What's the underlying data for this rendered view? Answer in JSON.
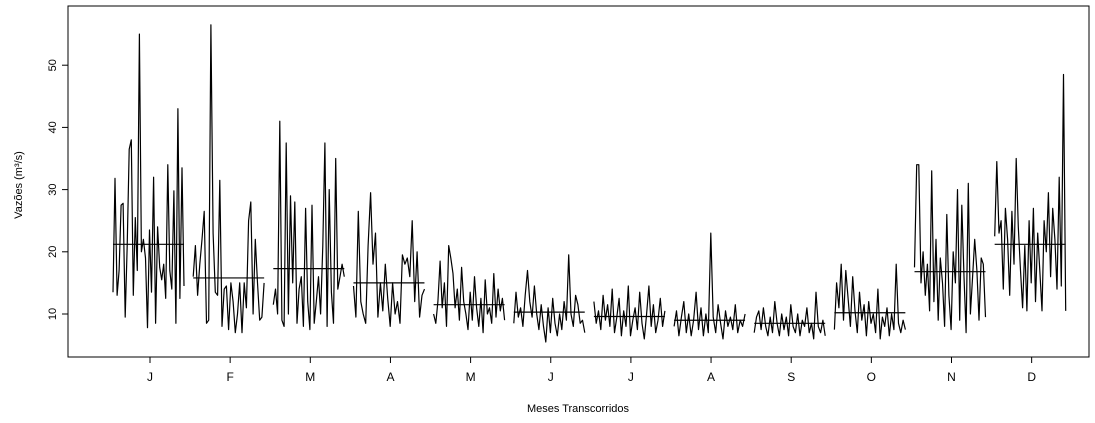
{
  "chart_data": {
    "type": "line",
    "title": "",
    "xlabel": "Meses Transcorridos",
    "ylabel": "Vazões (m³/s)",
    "ylim": [
      3,
      57
    ],
    "yticks": [
      10,
      20,
      30,
      40,
      50
    ],
    "grid": false,
    "legend": "none",
    "months": [
      {
        "label": "J",
        "mean": 21.2,
        "values": [
          13.5,
          31.8,
          13.0,
          17.0,
          27.5,
          27.8,
          9.5,
          21.0,
          36.5,
          38.0,
          13.0,
          25.5,
          17.0,
          55.0,
          20.0,
          22.0,
          19.0,
          7.8,
          23.5,
          13.5,
          32.0,
          8.5,
          24.0,
          17.5,
          15.5,
          18.0,
          12.5,
          34.0,
          17.0,
          14.0,
          29.8,
          8.5,
          43.0,
          12.5,
          33.5,
          14.5
        ]
      },
      {
        "label": "F",
        "mean": 15.8,
        "values": [
          16.0,
          21.0,
          13.0,
          18.0,
          22.0,
          26.5,
          8.5,
          9.0,
          56.5,
          23.0,
          13.5,
          13.0,
          31.5,
          8.0,
          14.0,
          14.5,
          7.5,
          15.0,
          12.0,
          7.0,
          10.0,
          15.0,
          7.0,
          15.0,
          11.0,
          25.0,
          28.0,
          10.0,
          22.0,
          15.0,
          9.0,
          9.5,
          15.0
        ]
      },
      {
        "label": "M",
        "mean": 17.3,
        "values": [
          11.5,
          14.0,
          10.0,
          41.0,
          9.0,
          8.0,
          37.5,
          10.0,
          29.0,
          15.0,
          28.0,
          8.5,
          14.0,
          16.0,
          8.0,
          27.0,
          12.0,
          7.5,
          27.5,
          8.5,
          12.0,
          16.0,
          10.0,
          21.0,
          37.5,
          8.0,
          30.0,
          13.5,
          8.5,
          35.0,
          14.0,
          16.0,
          18.0,
          16.0
        ]
      },
      {
        "label": "A",
        "mean": 15.0,
        "values": [
          14.5,
          9.5,
          26.5,
          12.0,
          10.0,
          8.5,
          21.0,
          29.5,
          18.0,
          23.0,
          9.5,
          15.0,
          10.5,
          18.0,
          12.5,
          8.0,
          15.0,
          10.0,
          12.0,
          8.5,
          19.5,
          18.0,
          19.0,
          16.0,
          25.0,
          12.0,
          20.0,
          9.5,
          13.0,
          14.0
        ]
      },
      {
        "label": "M",
        "mean": 11.5,
        "values": [
          10.0,
          8.5,
          12.0,
          18.5,
          11.0,
          15.0,
          8.0,
          21.0,
          19.0,
          16.5,
          11.0,
          14.0,
          9.0,
          17.5,
          12.0,
          10.0,
          7.5,
          13.5,
          9.0,
          16.0,
          11.0,
          8.0,
          12.5,
          7.0,
          15.5,
          10.0,
          11.0,
          8.5,
          16.5,
          9.5,
          14.0,
          10.5,
          12.5,
          9.0
        ]
      },
      {
        "label": "J",
        "mean": 10.3,
        "values": [
          8.5,
          13.5,
          9.5,
          11.0,
          8.0,
          13.0,
          17.0,
          12.0,
          9.5,
          14.5,
          10.0,
          7.5,
          11.5,
          8.0,
          5.5,
          11.0,
          7.0,
          12.5,
          8.5,
          6.5,
          10.0,
          7.5,
          12.0,
          9.0,
          19.5,
          10.0,
          8.0,
          13.0,
          11.5,
          8.5,
          9.0,
          7.0
        ]
      },
      {
        "label": "J",
        "mean": 9.6,
        "values": [
          12.0,
          8.5,
          10.5,
          7.5,
          13.0,
          9.0,
          11.5,
          8.0,
          14.0,
          7.0,
          9.5,
          12.5,
          6.5,
          10.5,
          8.0,
          14.5,
          6.5,
          9.0,
          11.0,
          7.5,
          13.5,
          8.5,
          6.0,
          10.0,
          14.5,
          8.0,
          11.5,
          7.0,
          9.0,
          12.5,
          8.0,
          10.5
        ]
      },
      {
        "label": "A",
        "mean": 9.0,
        "values": [
          8.0,
          10.5,
          6.5,
          9.5,
          12.0,
          7.0,
          10.0,
          6.5,
          9.0,
          13.5,
          7.5,
          11.0,
          6.5,
          10.0,
          7.0,
          23.0,
          9.5,
          7.0,
          11.5,
          8.5,
          6.0,
          10.5,
          8.0,
          9.5,
          7.5,
          11.5,
          7.0,
          9.0,
          8.0,
          10.0
        ]
      },
      {
        "label": "S",
        "mean": 8.5,
        "values": [
          7.0,
          9.5,
          10.5,
          7.5,
          11.0,
          8.0,
          6.5,
          9.5,
          7.0,
          12.0,
          8.5,
          6.5,
          10.0,
          7.5,
          9.5,
          6.5,
          11.5,
          8.0,
          7.0,
          10.0,
          6.5,
          9.0,
          8.0,
          11.0,
          7.0,
          8.5,
          6.0,
          13.5,
          8.0,
          7.0,
          9.0,
          6.5
        ]
      },
      {
        "label": "O",
        "mean": 10.2,
        "values": [
          7.5,
          15.0,
          11.0,
          18.0,
          9.0,
          17.0,
          12.5,
          8.0,
          16.0,
          10.5,
          7.0,
          13.5,
          9.0,
          11.5,
          6.5,
          12.0,
          8.5,
          10.0,
          7.0,
          14.0,
          6.0,
          9.5,
          8.0,
          11.0,
          6.5,
          10.0,
          7.5,
          18.0,
          8.5,
          7.0,
          9.0,
          7.5
        ]
      },
      {
        "label": "N",
        "mean": 16.8,
        "values": [
          17.5,
          34.0,
          34.0,
          15.0,
          20.0,
          13.0,
          18.0,
          10.5,
          33.0,
          12.0,
          22.0,
          9.0,
          19.0,
          15.0,
          8.0,
          26.0,
          13.0,
          7.5,
          20.0,
          15.0,
          30.0,
          9.0,
          27.5,
          16.0,
          7.0,
          31.0,
          10.0,
          16.0,
          22.0,
          17.0,
          9.0,
          19.0,
          18.0,
          9.5
        ]
      },
      {
        "label": "D",
        "mean": 21.2,
        "values": [
          22.5,
          34.5,
          23.0,
          25.0,
          14.0,
          27.0,
          22.0,
          13.0,
          26.5,
          18.0,
          35.0,
          24.0,
          17.0,
          11.0,
          21.0,
          10.5,
          25.0,
          15.0,
          27.0,
          12.0,
          23.0,
          17.0,
          10.5,
          25.0,
          20.0,
          29.5,
          16.0,
          27.0,
          22.0,
          14.0,
          32.0,
          14.5,
          48.5,
          10.5
        ]
      }
    ]
  }
}
